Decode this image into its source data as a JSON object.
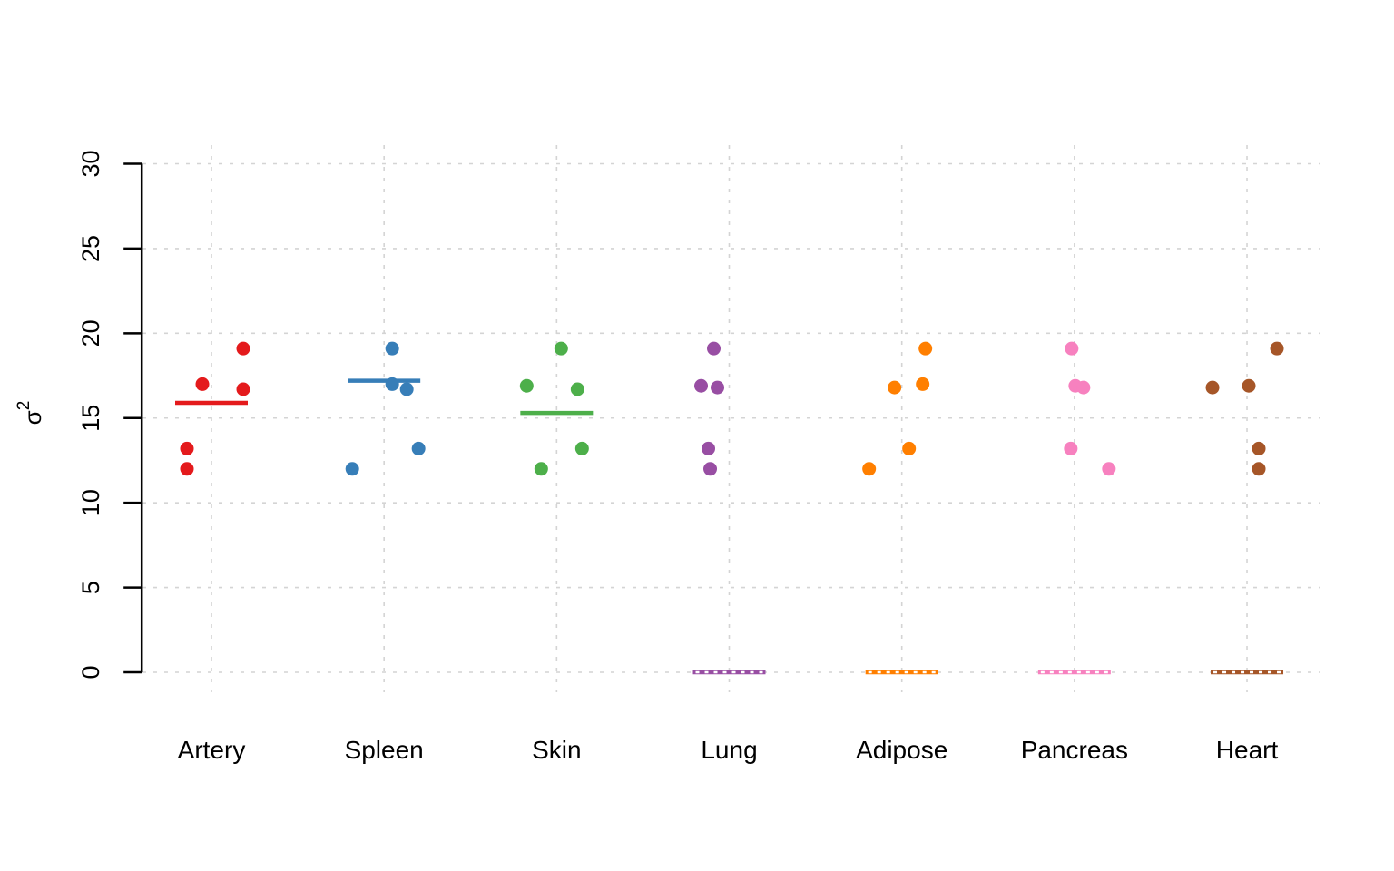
{
  "figure": {
    "background": "#ffffff",
    "axis_color": "#000000",
    "grid_color": "#d4d4d4",
    "zero_line_dash_color": "#ffffff"
  },
  "chart_data": {
    "type": "scatter",
    "subtype": "stripchart-jittered-dotplot",
    "title": "",
    "xlabel": "",
    "ylabel": "σ²",
    "ylim": [
      0,
      30
    ],
    "yticks": [
      0,
      5,
      10,
      15,
      20,
      25,
      30
    ],
    "grid": true,
    "grid_style": "dashed",
    "legend": "none",
    "categories": [
      "Artery",
      "Spleen",
      "Skin",
      "Lung",
      "Adipose",
      "Pancreas",
      "Heart"
    ],
    "series": [
      {
        "name": "Artery",
        "color": "#E41A1C",
        "center_line_value": 15.9,
        "points": [
          {
            "value": 19.1,
            "jitter": 35
          },
          {
            "value": 17.0,
            "jitter": -10
          },
          {
            "value": 16.7,
            "jitter": 35
          },
          {
            "value": 13.2,
            "jitter": -27
          },
          {
            "value": 12.0,
            "jitter": -27
          }
        ]
      },
      {
        "name": "Spleen",
        "color": "#377EB8",
        "center_line_value": 17.2,
        "points": [
          {
            "value": 19.1,
            "jitter": 9
          },
          {
            "value": 17.0,
            "jitter": 9
          },
          {
            "value": 16.7,
            "jitter": 25
          },
          {
            "value": 13.2,
            "jitter": 38
          },
          {
            "value": 12.0,
            "jitter": -35
          }
        ]
      },
      {
        "name": "Skin",
        "color": "#4DAF4A",
        "center_line_value": 15.3,
        "points": [
          {
            "value": 19.1,
            "jitter": 5
          },
          {
            "value": 16.9,
            "jitter": -33
          },
          {
            "value": 16.7,
            "jitter": 23
          },
          {
            "value": 13.2,
            "jitter": 28
          },
          {
            "value": 12.0,
            "jitter": -17
          }
        ]
      },
      {
        "name": "Lung",
        "color": "#984EA3",
        "center_line_value": 0,
        "points": [
          {
            "value": 19.1,
            "jitter": -17
          },
          {
            "value": 16.9,
            "jitter": -31
          },
          {
            "value": 16.8,
            "jitter": -13
          },
          {
            "value": 13.2,
            "jitter": -23
          },
          {
            "value": 12.0,
            "jitter": -21
          }
        ]
      },
      {
        "name": "Adipose",
        "color": "#FF7F00",
        "center_line_value": 0,
        "points": [
          {
            "value": 19.1,
            "jitter": 26
          },
          {
            "value": 17.0,
            "jitter": 23
          },
          {
            "value": 16.8,
            "jitter": -8
          },
          {
            "value": 13.2,
            "jitter": 8
          },
          {
            "value": 12.0,
            "jitter": -36
          }
        ]
      },
      {
        "name": "Pancreas",
        "color": "#F781BF",
        "center_line_value": 0,
        "points": [
          {
            "value": 19.1,
            "jitter": -3
          },
          {
            "value": 16.9,
            "jitter": 1
          },
          {
            "value": 16.8,
            "jitter": 10
          },
          {
            "value": 13.2,
            "jitter": -4
          },
          {
            "value": 12.0,
            "jitter": 38
          }
        ]
      },
      {
        "name": "Heart",
        "color": "#A65628",
        "center_line_value": 0,
        "points": [
          {
            "value": 19.1,
            "jitter": 33
          },
          {
            "value": 16.9,
            "jitter": 2
          },
          {
            "value": 16.8,
            "jitter": -38
          },
          {
            "value": 13.2,
            "jitter": 13
          },
          {
            "value": 12.0,
            "jitter": 13
          }
        ]
      }
    ]
  }
}
